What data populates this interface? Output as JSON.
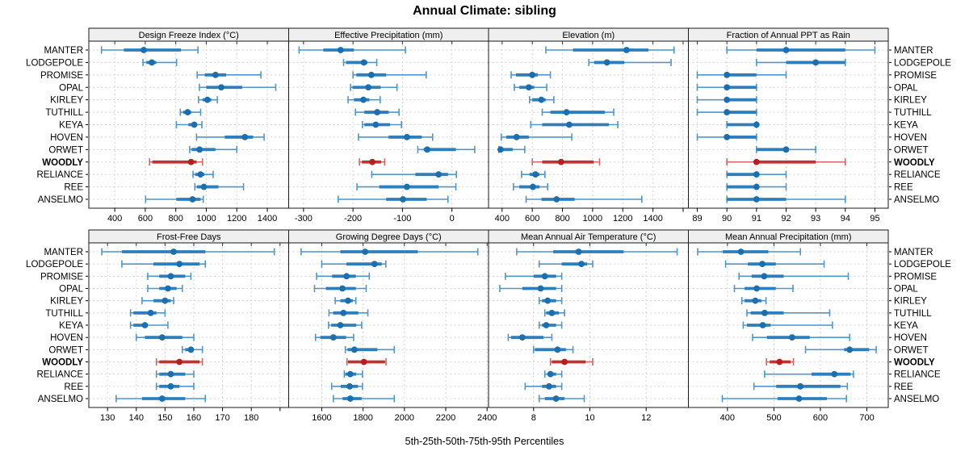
{
  "title": "Annual Climate: sibling",
  "footer": "5th-25th-50th-75th-95th Percentiles",
  "chart_data": {
    "type": "dotplot-percentiles",
    "title": "Annual Climate: sibling",
    "footer": "5th-25th-50th-75th-95th Percentiles",
    "percentiles": [
      5,
      25,
      50,
      75,
      95
    ],
    "grid": "dashed",
    "legend_position": "none",
    "sites": [
      "MANTER",
      "LODGEPOLE",
      "PROMISE",
      "OPAL",
      "KIRLEY",
      "TUTHILL",
      "KEYA",
      "HOVEN",
      "ORWET",
      "WOODLY",
      "RELIANCE",
      "REE",
      "ANSELMO"
    ],
    "highlight_site": "WOODLY",
    "colors": {
      "blue_dot": "#1B6FAE",
      "blue_box": "#2F7EBC",
      "blue_whisker": "#4E96CB",
      "red_dot": "#B51F1F",
      "red_box": "#C53030",
      "red_whisker": "#CF6767",
      "grid_line": "#D4D4D4",
      "strip_bg": "#EFEFEF",
      "border": "#1A1A1A"
    },
    "panels": [
      {
        "label": "Design Freeze Index (°C)",
        "row": 0,
        "col": 0,
        "xlim": [
          230,
          1540
        ],
        "ticks": [
          400,
          600,
          800,
          1000,
          1200,
          1400
        ],
        "values": [
          [
            313,
            460,
            590,
            834,
            945
          ],
          [
            585,
            607,
            643,
            672,
            805
          ],
          [
            940,
            990,
            1060,
            1130,
            1358
          ],
          [
            955,
            1000,
            1098,
            1235,
            1455
          ],
          [
            949,
            975,
            1007,
            1033,
            1072
          ],
          [
            830,
            849,
            878,
            901,
            963
          ],
          [
            804,
            883,
            921,
            936,
            971
          ],
          [
            936,
            1121,
            1253,
            1306,
            1379
          ],
          [
            891,
            904,
            956,
            1060,
            1200
          ],
          [
            628,
            646,
            900,
            936,
            975
          ],
          [
            913,
            927,
            962,
            988,
            1045
          ],
          [
            925,
            939,
            984,
            1080,
            1244
          ],
          [
            602,
            804,
            910,
            963,
            980
          ]
        ]
      },
      {
        "label": "Effective Precipitation (mm)",
        "row": 0,
        "col": 1,
        "xlim": [
          -330,
          74
        ],
        "ticks": [
          -300,
          -200,
          -100,
          0
        ],
        "values": [
          [
            -309,
            -260,
            -225,
            -198,
            -94
          ],
          [
            -219,
            -214,
            -178,
            -171,
            -152
          ],
          [
            -200,
            -193,
            -163,
            -133,
            -52
          ],
          [
            -205,
            -201,
            -169,
            -144,
            -111
          ],
          [
            -210,
            -198,
            -179,
            -167,
            -145
          ],
          [
            -195,
            -177,
            -151,
            -128,
            -107
          ],
          [
            -181,
            -177,
            -154,
            -125,
            -102
          ],
          [
            -189,
            -128,
            -91,
            -61,
            -39
          ],
          [
            -69,
            -57,
            -50,
            8,
            46
          ],
          [
            -187,
            -182,
            -161,
            -143,
            -136
          ],
          [
            -162,
            -74,
            -27,
            -8,
            9
          ],
          [
            -192,
            -147,
            -91,
            -27,
            8
          ],
          [
            -230,
            -133,
            -99,
            -51,
            -8
          ]
        ]
      },
      {
        "label": "Elevation (m)",
        "row": 0,
        "col": 2,
        "xlim": [
          310,
          1635
        ],
        "ticks": [
          400,
          600,
          800,
          1000,
          1200,
          1400,
          1600
        ],
        "tick_labels": [
          "400",
          "600",
          "800",
          "1000",
          "1200",
          "1400",
          ""
        ],
        "values": [
          [
            690,
            870,
            1225,
            1370,
            1540
          ],
          [
            975,
            1010,
            1095,
            1210,
            1520
          ],
          [
            460,
            492,
            600,
            636,
            720
          ],
          [
            481,
            514,
            577,
            613,
            696
          ],
          [
            582,
            600,
            660,
            689,
            743
          ],
          [
            666,
            720,
            827,
            1080,
            1140
          ],
          [
            590,
            666,
            845,
            1108,
            1167
          ],
          [
            394,
            428,
            496,
            577,
            862
          ],
          [
            379,
            381,
            390,
            470,
            550
          ],
          [
            600,
            666,
            791,
            1006,
            1046
          ],
          [
            529,
            582,
            621,
            648,
            684
          ],
          [
            475,
            514,
            604,
            648,
            702
          ],
          [
            559,
            661,
            761,
            881,
            1326
          ]
        ]
      },
      {
        "label": "Fraction of Annual PPT as Rain",
        "row": 0,
        "col": 3,
        "xlim": [
          88.7,
          95.45
        ],
        "ticks": [
          89,
          90,
          91,
          92,
          93,
          94,
          95
        ],
        "values": [
          [
            90,
            91,
            92,
            94,
            95
          ],
          [
            91,
            92,
            93,
            94,
            94
          ],
          [
            89,
            90,
            90,
            91,
            92
          ],
          [
            89,
            90,
            90,
            91,
            91
          ],
          [
            89,
            90,
            90,
            91,
            91
          ],
          [
            89,
            90,
            90,
            91,
            91
          ],
          [
            90,
            90,
            91,
            91,
            91
          ],
          [
            89,
            90,
            90,
            91,
            91
          ],
          [
            91,
            91,
            92,
            92,
            93
          ],
          [
            90,
            91,
            91,
            93,
            94
          ],
          [
            90,
            90,
            91,
            91,
            92
          ],
          [
            90,
            90,
            91,
            91,
            92
          ],
          [
            90,
            90,
            91,
            92,
            94
          ]
        ]
      },
      {
        "label": "Frost-Free Days",
        "row": 1,
        "col": 0,
        "xlim": [
          123.5,
          193
        ],
        "ticks": [
          130,
          140,
          150,
          160,
          170,
          180,
          190
        ],
        "tick_labels": [
          "130",
          "140",
          "150",
          "160",
          "170",
          "180",
          ""
        ],
        "values": [
          [
            128,
            135,
            153,
            164,
            188
          ],
          [
            135,
            146,
            155,
            162,
            164
          ],
          [
            144,
            148,
            152,
            157,
            159
          ],
          [
            144,
            148,
            151,
            154,
            156
          ],
          [
            142,
            146,
            150,
            152,
            153
          ],
          [
            138,
            139,
            145,
            147,
            150
          ],
          [
            138,
            139,
            143,
            144,
            151
          ],
          [
            140,
            143,
            149,
            156,
            160
          ],
          [
            156,
            157,
            159,
            160,
            163
          ],
          [
            147,
            148,
            155,
            162,
            163
          ],
          [
            147,
            148,
            152,
            157,
            160
          ],
          [
            147,
            148,
            152,
            155,
            160
          ],
          [
            133,
            142,
            149,
            157,
            164
          ]
        ]
      },
      {
        "label": "Growing Degree Days (°C)",
        "row": 1,
        "col": 1,
        "xlim": [
          1440,
          2407
        ],
        "ticks": [
          1600,
          1800,
          2000,
          2200,
          2400
        ],
        "values": [
          [
            1500,
            1690,
            1810,
            2065,
            2355
          ],
          [
            1600,
            1720,
            1855,
            1890,
            1910
          ],
          [
            1575,
            1650,
            1720,
            1765,
            1830
          ],
          [
            1565,
            1620,
            1700,
            1765,
            1815
          ],
          [
            1665,
            1690,
            1727,
            1750,
            1765
          ],
          [
            1635,
            1655,
            1705,
            1777,
            1823
          ],
          [
            1633,
            1646,
            1690,
            1767,
            1793
          ],
          [
            1570,
            1593,
            1656,
            1718,
            1754
          ],
          [
            1714,
            1725,
            1758,
            1869,
            1951
          ],
          [
            1722,
            1727,
            1804,
            1906,
            1911
          ],
          [
            1709,
            1714,
            1738,
            1767,
            1797
          ],
          [
            1648,
            1692,
            1735,
            1775,
            1797
          ],
          [
            1656,
            1701,
            1738,
            1793,
            1951
          ]
        ]
      },
      {
        "label": "Mean Annual Air Temperature (°C)",
        "row": 1,
        "col": 2,
        "xlim": [
          6.4,
          13.5
        ],
        "ticks": [
          8,
          10,
          12
        ],
        "values": [
          [
            7.4,
            8.7,
            9.6,
            11.2,
            13.1
          ],
          [
            8.2,
            9.0,
            9.7,
            9.9,
            10.1
          ],
          [
            7.0,
            8.0,
            8.4,
            8.8,
            9.0
          ],
          [
            6.8,
            7.6,
            8.25,
            8.8,
            9.0
          ],
          [
            8.2,
            8.3,
            8.5,
            8.8,
            9.0
          ],
          [
            8.4,
            8.45,
            8.65,
            8.9,
            9.1
          ],
          [
            8.2,
            8.3,
            8.45,
            8.8,
            9.0
          ],
          [
            7.1,
            7.2,
            7.6,
            8.35,
            8.65
          ],
          [
            8.0,
            8.05,
            8.85,
            9.15,
            9.4
          ],
          [
            8.6,
            8.65,
            9.1,
            9.85,
            10.1
          ],
          [
            8.4,
            8.5,
            8.6,
            8.8,
            9.0
          ],
          [
            7.7,
            8.3,
            8.55,
            8.8,
            9.0
          ],
          [
            8.2,
            8.4,
            8.8,
            9.1,
            9.8
          ]
        ]
      },
      {
        "label": "Mean Annual Precipitation (mm)",
        "row": 1,
        "col": 3,
        "xlim": [
          316,
          746
        ],
        "ticks": [
          400,
          500,
          600,
          700
        ],
        "values": [
          [
            336,
            390,
            429,
            488,
            557
          ],
          [
            396,
            444,
            475,
            504,
            608
          ],
          [
            425,
            452,
            479,
            521,
            660
          ],
          [
            415,
            437,
            463,
            504,
            541
          ],
          [
            431,
            437,
            460,
            473,
            483
          ],
          [
            442,
            450,
            480,
            521,
            620
          ],
          [
            434,
            442,
            476,
            493,
            626
          ],
          [
            454,
            485,
            539,
            577,
            663
          ],
          [
            568,
            651,
            663,
            705,
            720
          ],
          [
            484,
            491,
            512,
            536,
            542
          ],
          [
            480,
            581,
            630,
            665,
            671
          ],
          [
            457,
            505,
            557,
            643,
            658
          ],
          [
            389,
            508,
            554,
            614,
            656
          ]
        ]
      }
    ]
  }
}
